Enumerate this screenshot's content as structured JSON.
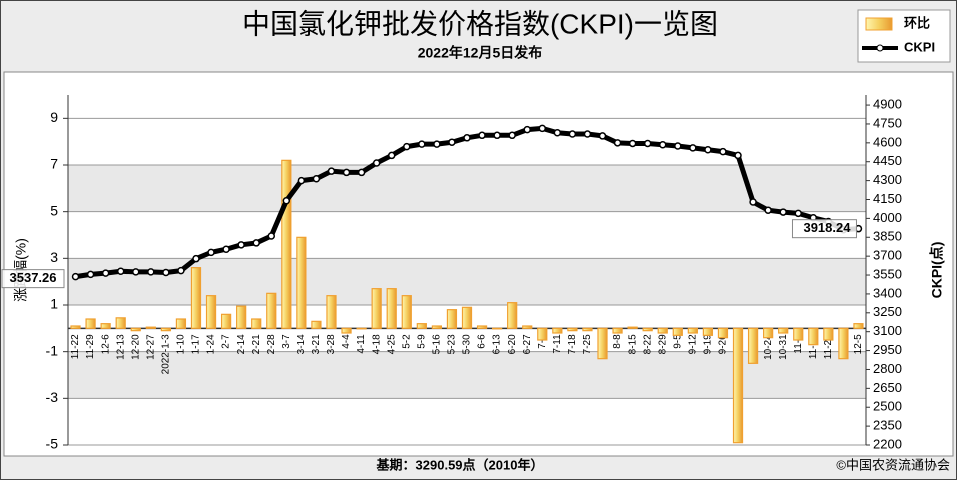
{
  "chart_data": {
    "type": "combo",
    "title": "中国氯化钾批发价格指数(CKPI)一览图",
    "subtitle": "2022年12月5日发布",
    "footnote": "基期：3290.59点（2010年）",
    "source": "©中国农资流通协会",
    "y_label": "涨跌幅(%)",
    "y2_label": "CKPI(点)",
    "categories": [
      "11-22",
      "11-29",
      "12-6",
      "12-13",
      "12-20",
      "12-27",
      "2022-1-3",
      "1-10",
      "1-17",
      "1-24",
      "2-7",
      "2-14",
      "2-21",
      "2-28",
      "3-7",
      "3-14",
      "3-21",
      "3-28",
      "4-4",
      "4-11",
      "4-18",
      "4-25",
      "5-2",
      "5-9",
      "5-16",
      "5-23",
      "5-30",
      "6-6",
      "6-13",
      "6-20",
      "6-27",
      "7-4",
      "7-11",
      "7-18",
      "7-25",
      "8-1",
      "8-8",
      "8-15",
      "8-22",
      "8-29",
      "9-5",
      "9-12",
      "9-19",
      "9-26",
      "10-10",
      "10-17",
      "10-24",
      "10-31",
      "11-7",
      "11-14",
      "11-21",
      "11-28",
      "12-5"
    ],
    "series": [
      {
        "name": "环比",
        "type": "bar",
        "color": "#f0a030",
        "values": [
          0.1,
          0.4,
          0.2,
          0.45,
          -0.1,
          0.05,
          -0.1,
          0.4,
          2.6,
          1.4,
          0.6,
          0.95,
          0.4,
          1.5,
          7.2,
          3.9,
          0.3,
          1.4,
          -0.2,
          0.0,
          1.7,
          1.7,
          1.4,
          0.2,
          0.1,
          0.8,
          0.9,
          0.1,
          0.0,
          1.1,
          0.1,
          -0.5,
          -0.2,
          -0.1,
          -0.1,
          -1.3,
          -0.2,
          0.05,
          -0.1,
          -0.2,
          -0.3,
          -0.2,
          -0.3,
          -0.4,
          -4.9,
          -1.5,
          -0.4,
          -0.2,
          -0.5,
          -0.7,
          -0.5,
          -1.3,
          0.2
        ]
      },
      {
        "name": "CKPI",
        "type": "line",
        "axis": "y2",
        "color": "#000000",
        "values": [
          3537.26,
          3555,
          3565,
          3580,
          3575,
          3575,
          3570,
          3585,
          3680,
          3730,
          3755,
          3790,
          3805,
          3860,
          4140,
          4300,
          4315,
          4375,
          4365,
          4365,
          4440,
          4500,
          4570,
          4590,
          4590,
          4605,
          4640,
          4660,
          4660,
          4660,
          4705,
          4715,
          4680,
          4670,
          4670,
          4655,
          4600,
          4595,
          4595,
          4585,
          4575,
          4560,
          4545,
          4530,
          4500,
          4130,
          4065,
          4050,
          4040,
          4005,
          3975,
          3910,
          3918.24
        ]
      }
    ],
    "ylim": [
      -5,
      10
    ],
    "yticks": [
      -5,
      -3,
      -1,
      1,
      3,
      5,
      7,
      9
    ],
    "y2lim": [
      2200,
      4980
    ],
    "y2ticks": [
      2200,
      2350,
      2500,
      2650,
      2800,
      2950,
      3100,
      3250,
      3400,
      3550,
      3700,
      3850,
      4000,
      4150,
      4300,
      4450,
      4600,
      4750,
      4900
    ],
    "grid": true
  }
}
